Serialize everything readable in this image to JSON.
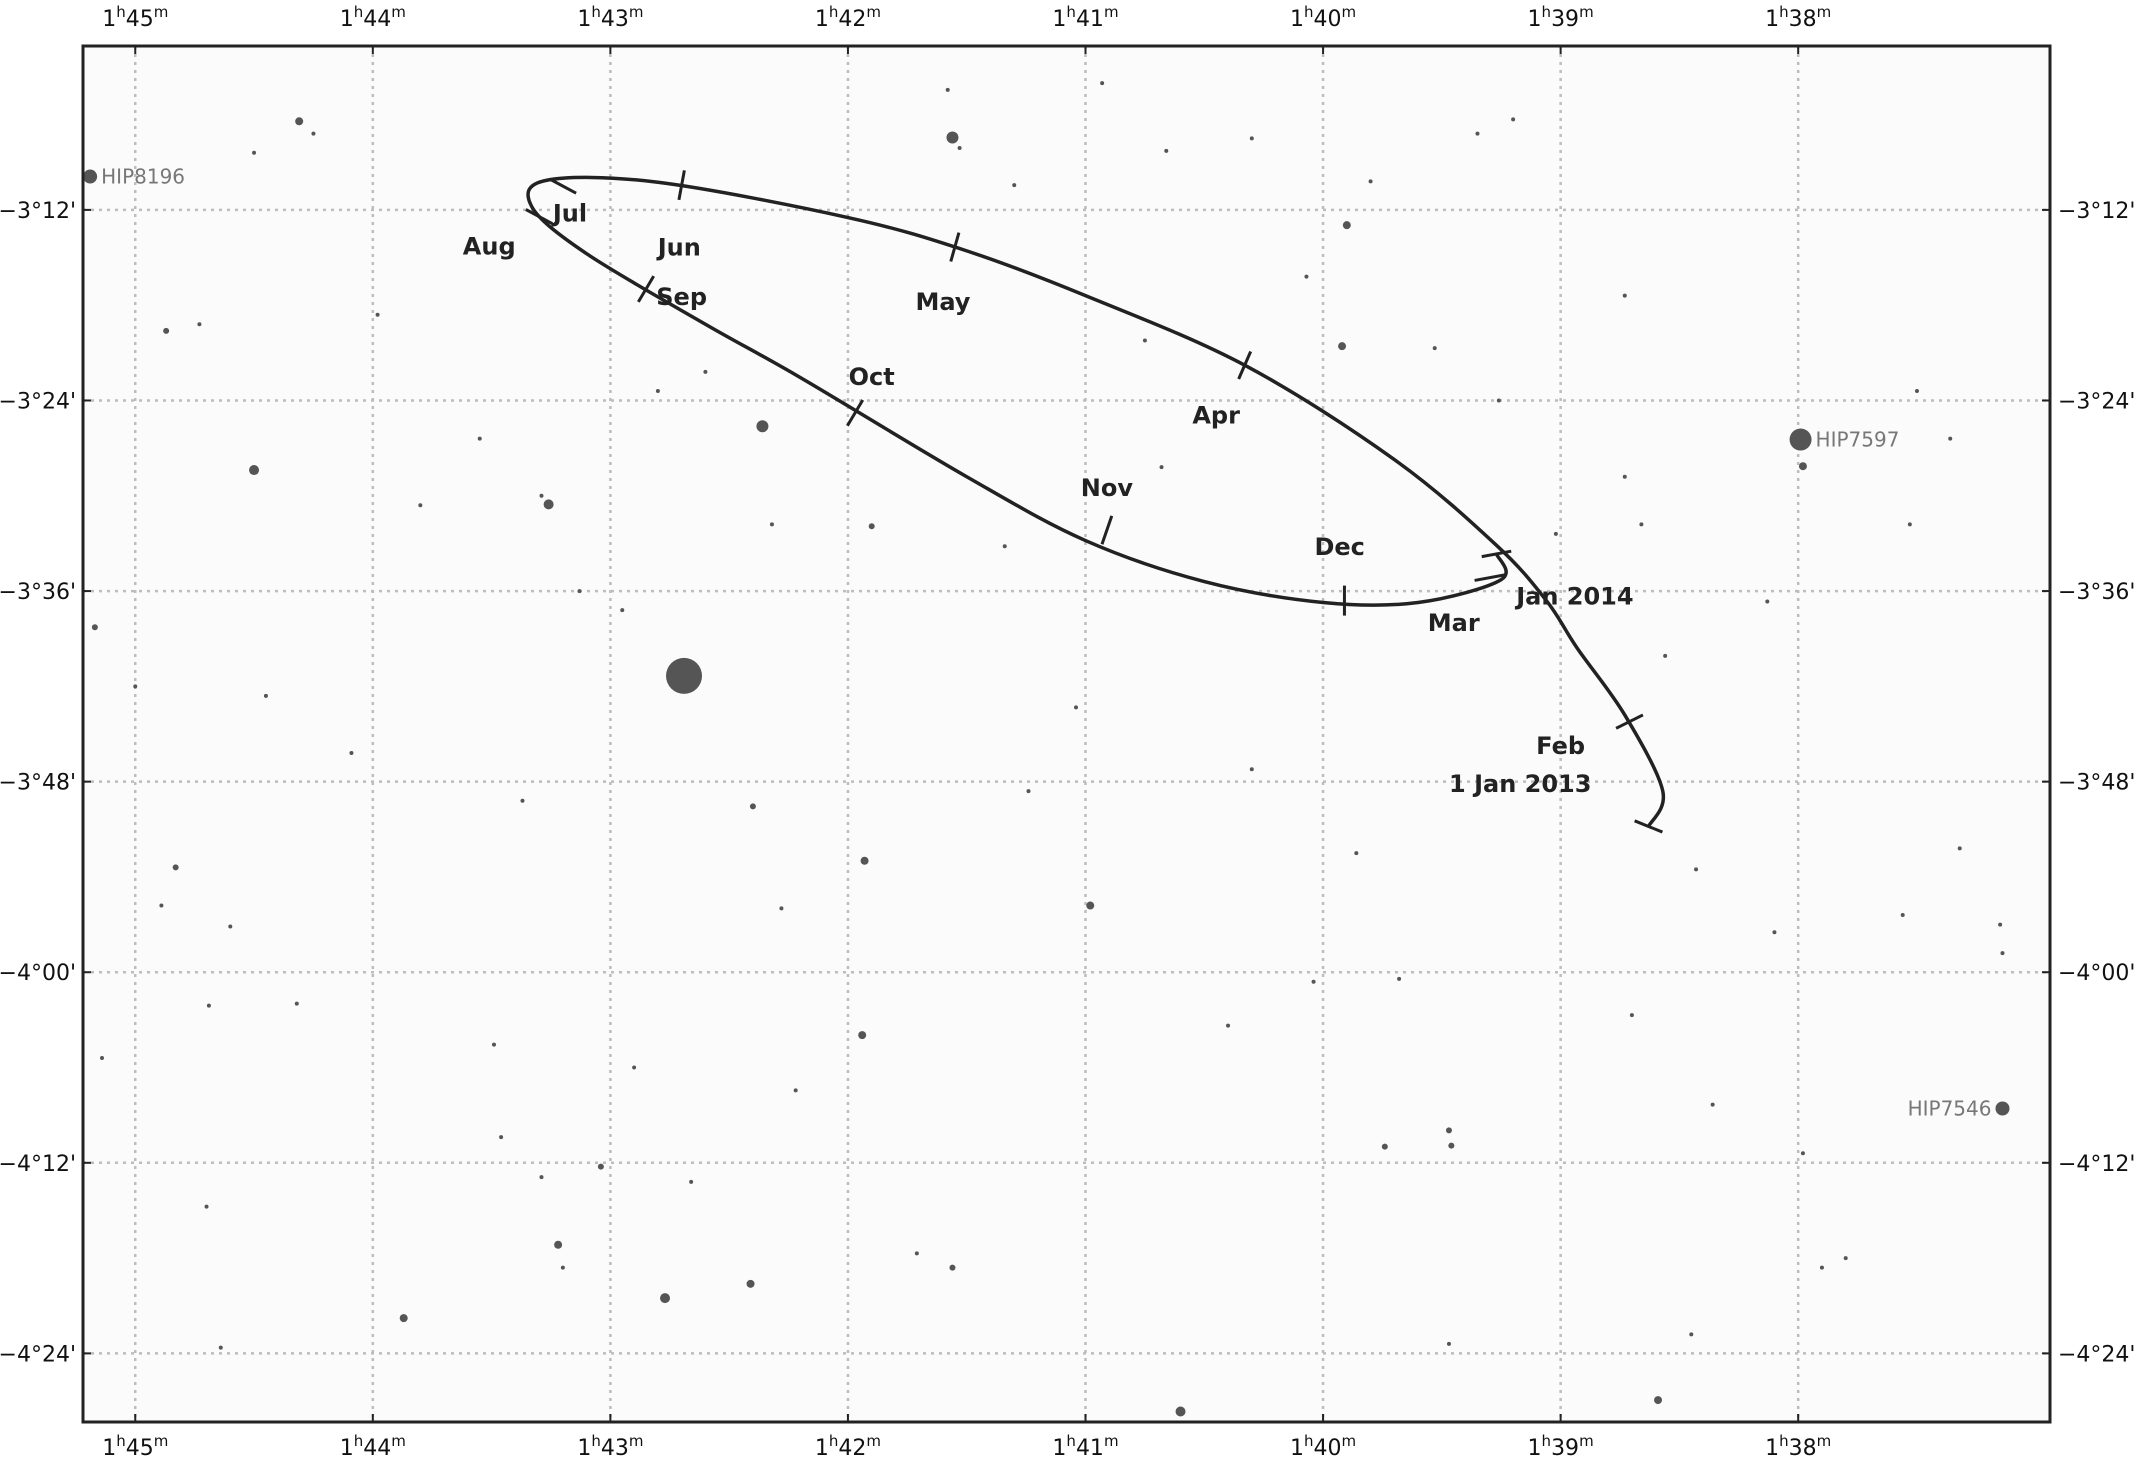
{
  "chart_data": {
    "type": "scatter",
    "ra_axis": {
      "ticks": [
        {
          "value": 105,
          "h": "1",
          "m": "45",
          "sup_h": "h",
          "sup_m": "m"
        },
        {
          "value": 104,
          "h": "1",
          "m": "44",
          "sup_h": "h",
          "sup_m": "m"
        },
        {
          "value": 103,
          "h": "1",
          "m": "43",
          "sup_h": "h",
          "sup_m": "m"
        },
        {
          "value": 102,
          "h": "1",
          "m": "42",
          "sup_h": "h",
          "sup_m": "m"
        },
        {
          "value": 101,
          "h": "1",
          "m": "41",
          "sup_h": "h",
          "sup_m": "m"
        },
        {
          "value": 100,
          "h": "1",
          "m": "40",
          "sup_h": "h",
          "sup_m": "m"
        },
        {
          "value": 99,
          "h": "1",
          "m": "39",
          "sup_h": "h",
          "sup_m": "m"
        },
        {
          "value": 98,
          "h": "1",
          "m": "38",
          "sup_h": "h",
          "sup_m": "m"
        }
      ],
      "range": [
        105.22,
        96.94
      ]
    },
    "dec_axis": {
      "ticks": [
        {
          "value": -3.2,
          "label": "-3°12'"
        },
        {
          "value": -3.4,
          "label": "-3°24'"
        },
        {
          "value": -3.6,
          "label": "-3°36'"
        },
        {
          "value": -3.8,
          "label": "-3°48'"
        },
        {
          "value": -4.0,
          "label": "-4°00'"
        },
        {
          "value": -4.2,
          "label": "-4°12'"
        },
        {
          "value": -4.4,
          "label": "-4°24'"
        }
      ],
      "range": [
        -3.028,
        -4.472
      ]
    },
    "grid": true,
    "path": {
      "points": [
        [
          98.63,
          -3.847
        ],
        [
          98.57,
          -3.81
        ],
        [
          98.73,
          -3.73
        ],
        [
          98.93,
          -3.66
        ],
        [
          99.06,
          -3.61
        ],
        [
          99.27,
          -3.552
        ],
        [
          99.7,
          -3.462
        ],
        [
          100.33,
          -3.363
        ],
        [
          101.0,
          -3.29
        ],
        [
          101.5,
          -3.243
        ],
        [
          102.0,
          -3.208
        ],
        [
          102.8,
          -3.171
        ],
        [
          103.27,
          -3.169
        ],
        [
          103.33,
          -3.197
        ],
        [
          103.1,
          -3.246
        ],
        [
          102.6,
          -3.32
        ],
        [
          102.2,
          -3.376
        ],
        [
          101.5,
          -3.48
        ],
        [
          101.0,
          -3.547
        ],
        [
          100.5,
          -3.59
        ],
        [
          100.0,
          -3.612
        ],
        [
          99.6,
          -3.612
        ],
        [
          99.25,
          -3.588
        ],
        [
          99.27,
          -3.561
        ]
      ],
      "months": [
        {
          "name": "1 Jan 2013",
          "ra": 98.63,
          "dec": -3.847,
          "lra": 99.17,
          "ldec": -3.811
        },
        {
          "name": "Feb",
          "ra": 98.71,
          "dec": -3.737,
          "lra": 99.0,
          "ldec": -3.771
        },
        {
          "name": "Mar",
          "ra": 99.3,
          "dec": -3.586,
          "lra": 99.45,
          "ldec": -3.642
        },
        {
          "name": "Apr",
          "ra": 100.33,
          "dec": -3.363,
          "lra": 100.45,
          "ldec": -3.424
        },
        {
          "name": "May",
          "ra": 101.55,
          "dec": -3.239,
          "lra": 101.6,
          "ldec": -3.305
        },
        {
          "name": "Jun",
          "ra": 102.7,
          "dec": -3.174,
          "lra": 102.71,
          "ldec": -3.248
        },
        {
          "name": "Jul",
          "ra": 103.2,
          "dec": -3.175,
          "lra": 103.17,
          "ldec": -3.212
        },
        {
          "name": "Aug",
          "ra": 103.3,
          "dec": -3.207,
          "lra": 103.51,
          "ldec": -3.247
        },
        {
          "name": "Sep",
          "ra": 102.85,
          "dec": -3.283,
          "lra": 102.7,
          "ldec": -3.3
        },
        {
          "name": "Oct",
          "ra": 101.97,
          "dec": -3.413,
          "lra": 101.9,
          "ldec": -3.384
        },
        {
          "name": "Nov",
          "ra": 100.91,
          "dec": -3.536,
          "lra": 100.91,
          "ldec": -3.5
        },
        {
          "name": "Dec",
          "ra": 99.91,
          "dec": -3.61,
          "lra": 99.93,
          "ldec": -3.562
        },
        {
          "name": "Jan 2014",
          "ra": 99.27,
          "dec": -3.561,
          "lra": 98.94,
          "ldec": -3.614
        }
      ]
    },
    "named_stars": [
      {
        "name": "HIP8196",
        "ra": 105.19,
        "dec": -3.165,
        "r": 7,
        "label_side": "right"
      },
      {
        "name": "HIP7597",
        "ra": 97.99,
        "dec": -3.441,
        "r": 11,
        "label_side": "right"
      },
      {
        "name": "HIP7546",
        "ra": 97.14,
        "dec": -4.143,
        "r": 7,
        "label_side": "left"
      }
    ],
    "stars": [
      [
        102.69,
        -3.689,
        18
      ],
      [
        101.56,
        -3.124,
        6
      ],
      [
        104.5,
        -3.473,
        5
      ],
      [
        103.26,
        -3.509,
        5
      ],
      [
        102.36,
        -3.427,
        6
      ],
      [
        99.9,
        -3.216,
        4
      ],
      [
        99.92,
        -3.343,
        4
      ],
      [
        97.98,
        -3.469,
        4
      ],
      [
        104.31,
        -3.107,
        4
      ],
      [
        103.87,
        -4.363,
        4
      ],
      [
        103.22,
        -4.286,
        4
      ],
      [
        102.77,
        -4.342,
        5
      ],
      [
        102.41,
        -4.327,
        4
      ],
      [
        101.9,
        -3.532,
        3
      ],
      [
        101.93,
        -3.883,
        4
      ],
      [
        101.94,
        -4.066,
        4
      ],
      [
        100.98,
        -3.93,
        4
      ],
      [
        100.6,
        -4.461,
        5
      ],
      [
        98.59,
        -4.449,
        4
      ],
      [
        99.47,
        -4.166,
        3
      ],
      [
        101.56,
        -4.31,
        3
      ],
      [
        105.17,
        -3.638,
        3
      ],
      [
        104.83,
        -3.89,
        3
      ],
      [
        102.4,
        -3.826,
        3
      ],
      [
        104.87,
        -3.327,
        3
      ],
      [
        99.46,
        -4.182,
        3
      ],
      [
        99.74,
        -4.183,
        3
      ],
      [
        103.04,
        -4.204,
        3
      ],
      [
        103.29,
        -3.5,
        2
      ],
      [
        101.34,
        -3.553,
        2
      ],
      [
        104.6,
        -3.952,
        2
      ],
      [
        104.32,
        -4.033,
        2
      ],
      [
        103.46,
        -4.173,
        2
      ],
      [
        103.98,
        -3.31,
        2
      ],
      [
        103.8,
        -3.51,
        2
      ],
      [
        102.8,
        -3.39,
        2
      ],
      [
        102.6,
        -3.37,
        2
      ],
      [
        103.13,
        -3.6,
        2
      ],
      [
        102.95,
        -3.62,
        2
      ],
      [
        102.32,
        -3.53,
        2
      ],
      [
        100.75,
        -3.337,
        2
      ],
      [
        100.68,
        -3.47,
        2
      ],
      [
        99.02,
        -3.54,
        2
      ],
      [
        99.26,
        -3.4,
        2
      ],
      [
        98.73,
        -3.48,
        2
      ],
      [
        98.66,
        -3.53,
        2
      ],
      [
        98.56,
        -3.668,
        2
      ],
      [
        98.13,
        -3.611,
        2
      ],
      [
        97.5,
        -3.39,
        2
      ],
      [
        97.36,
        -3.44,
        2
      ],
      [
        97.53,
        -3.53,
        2
      ],
      [
        97.32,
        -3.87,
        2
      ],
      [
        97.15,
        -3.95,
        2
      ],
      [
        101.58,
        -3.074,
        2
      ],
      [
        101.53,
        -3.135,
        2
      ],
      [
        101.3,
        -3.174,
        2
      ],
      [
        100.93,
        -3.067,
        2
      ],
      [
        100.66,
        -3.138,
        2
      ],
      [
        100.3,
        -3.125,
        2
      ],
      [
        99.35,
        -3.12,
        2
      ],
      [
        99.2,
        -3.105,
        2
      ],
      [
        99.8,
        -3.17,
        2
      ],
      [
        100.07,
        -3.27,
        2
      ],
      [
        99.53,
        -3.345,
        2
      ],
      [
        98.73,
        -3.29,
        2
      ],
      [
        104.45,
        -3.71,
        2
      ],
      [
        104.09,
        -3.77,
        2
      ],
      [
        104.25,
        -3.12,
        2
      ],
      [
        104.5,
        -3.14,
        2
      ],
      [
        104.73,
        -3.32,
        2
      ],
      [
        103.55,
        -3.44,
        2
      ],
      [
        105.0,
        -3.7,
        2
      ],
      [
        103.37,
        -3.82,
        2
      ],
      [
        103.49,
        -4.076,
        2
      ],
      [
        104.69,
        -4.035,
        2
      ],
      [
        105.14,
        -4.09,
        2
      ],
      [
        104.89,
        -3.93,
        2
      ],
      [
        103.2,
        -4.31,
        2
      ],
      [
        104.64,
        -4.394,
        2
      ],
      [
        104.7,
        -4.246,
        2
      ],
      [
        100.4,
        -4.056,
        2
      ],
      [
        100.04,
        -4.01,
        2
      ],
      [
        98.36,
        -4.139,
        2
      ],
      [
        97.98,
        -4.19,
        2
      ],
      [
        97.9,
        -4.31,
        2
      ],
      [
        98.45,
        -4.38,
        2
      ],
      [
        98.7,
        -4.045,
        2
      ],
      [
        99.68,
        -4.007,
        2
      ],
      [
        101.04,
        -3.722,
        2
      ],
      [
        100.3,
        -3.787,
        2
      ],
      [
        98.43,
        -3.892,
        2
      ],
      [
        98.1,
        -3.958,
        2
      ],
      [
        97.56,
        -3.94,
        2
      ],
      [
        97.14,
        -3.98,
        2
      ],
      [
        99.86,
        -3.875,
        2
      ],
      [
        101.24,
        -3.81,
        2
      ],
      [
        102.28,
        -3.933,
        2
      ],
      [
        102.9,
        -4.1,
        2
      ],
      [
        103.29,
        -4.215,
        2
      ],
      [
        102.22,
        -4.124,
        2
      ],
      [
        102.66,
        -4.22,
        2
      ],
      [
        101.71,
        -4.295,
        2
      ],
      [
        99.47,
        -4.39,
        2
      ],
      [
        97.8,
        -4.3,
        2
      ]
    ]
  }
}
